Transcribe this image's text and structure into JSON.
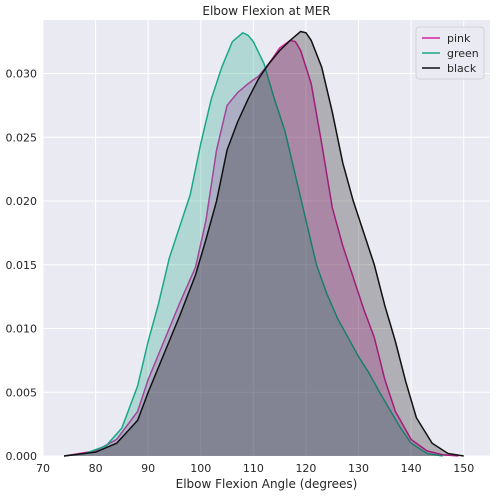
{
  "chart_data": {
    "type": "area",
    "title": "Elbow Flexion at MER",
    "xlabel": "Elbow Flexion Angle (degrees)",
    "ylabel": "",
    "xlim": [
      70,
      155
    ],
    "ylim": [
      0,
      0.0342
    ],
    "xticks": [
      70,
      80,
      90,
      100,
      110,
      120,
      130,
      140,
      150
    ],
    "yticks": [
      0.0,
      0.005,
      0.01,
      0.015,
      0.02,
      0.025,
      0.03
    ],
    "ytick_labels": [
      "0.000",
      "0.005",
      "0.010",
      "0.015",
      "0.020",
      "0.025",
      "0.030"
    ],
    "grid": true,
    "legend_position": "top-right",
    "series": [
      {
        "name": "pink",
        "color": "#d4239e",
        "x": [
          74,
          80,
          84,
          88,
          90,
          93,
          96,
          99,
          101,
          103,
          105,
          107,
          109,
          111,
          113,
          115,
          117,
          118,
          119,
          121,
          123,
          125,
          127,
          129,
          131,
          133,
          135,
          137,
          140,
          143,
          146,
          149
        ],
        "y": [
          0.0,
          0.0004,
          0.0013,
          0.0035,
          0.006,
          0.009,
          0.012,
          0.0148,
          0.0185,
          0.024,
          0.0275,
          0.0285,
          0.0292,
          0.0298,
          0.0308,
          0.032,
          0.0326,
          0.0325,
          0.0318,
          0.0292,
          0.0245,
          0.0195,
          0.0165,
          0.014,
          0.0115,
          0.0093,
          0.006,
          0.0035,
          0.0013,
          0.0004,
          0.0001,
          0.0
        ]
      },
      {
        "name": "green",
        "color": "#1aa88a",
        "x": [
          74,
          78,
          82,
          85,
          88,
          90,
          92,
          94,
          96,
          98,
          100,
          102,
          104,
          106,
          108,
          109,
          110,
          112,
          114,
          116,
          118,
          120,
          122,
          124,
          126,
          128,
          130,
          132,
          134,
          136,
          138,
          140,
          143,
          146
        ],
        "y": [
          0.0,
          0.0002,
          0.0008,
          0.0022,
          0.0055,
          0.009,
          0.012,
          0.0155,
          0.018,
          0.0205,
          0.0245,
          0.028,
          0.0305,
          0.0325,
          0.0332,
          0.033,
          0.0325,
          0.0308,
          0.028,
          0.0255,
          0.022,
          0.0185,
          0.015,
          0.0127,
          0.0108,
          0.0093,
          0.0078,
          0.0065,
          0.005,
          0.0036,
          0.0022,
          0.001,
          0.0002,
          0.0
        ]
      },
      {
        "name": "black",
        "color": "#111111",
        "x": [
          74,
          80,
          84,
          88,
          90,
          93,
          96,
          99,
          101,
          103,
          105,
          107,
          109,
          111,
          113,
          115,
          117,
          119,
          120,
          121,
          123,
          125,
          127,
          129,
          131,
          133,
          135,
          137,
          139,
          141,
          144,
          147,
          150
        ],
        "y": [
          0.0,
          0.0003,
          0.001,
          0.0028,
          0.005,
          0.008,
          0.011,
          0.0142,
          0.017,
          0.02,
          0.024,
          0.0262,
          0.028,
          0.0296,
          0.0308,
          0.0318,
          0.0326,
          0.0333,
          0.0332,
          0.0326,
          0.0305,
          0.027,
          0.023,
          0.02,
          0.0175,
          0.015,
          0.0118,
          0.009,
          0.0058,
          0.003,
          0.001,
          0.0002,
          0.0
        ]
      }
    ]
  }
}
